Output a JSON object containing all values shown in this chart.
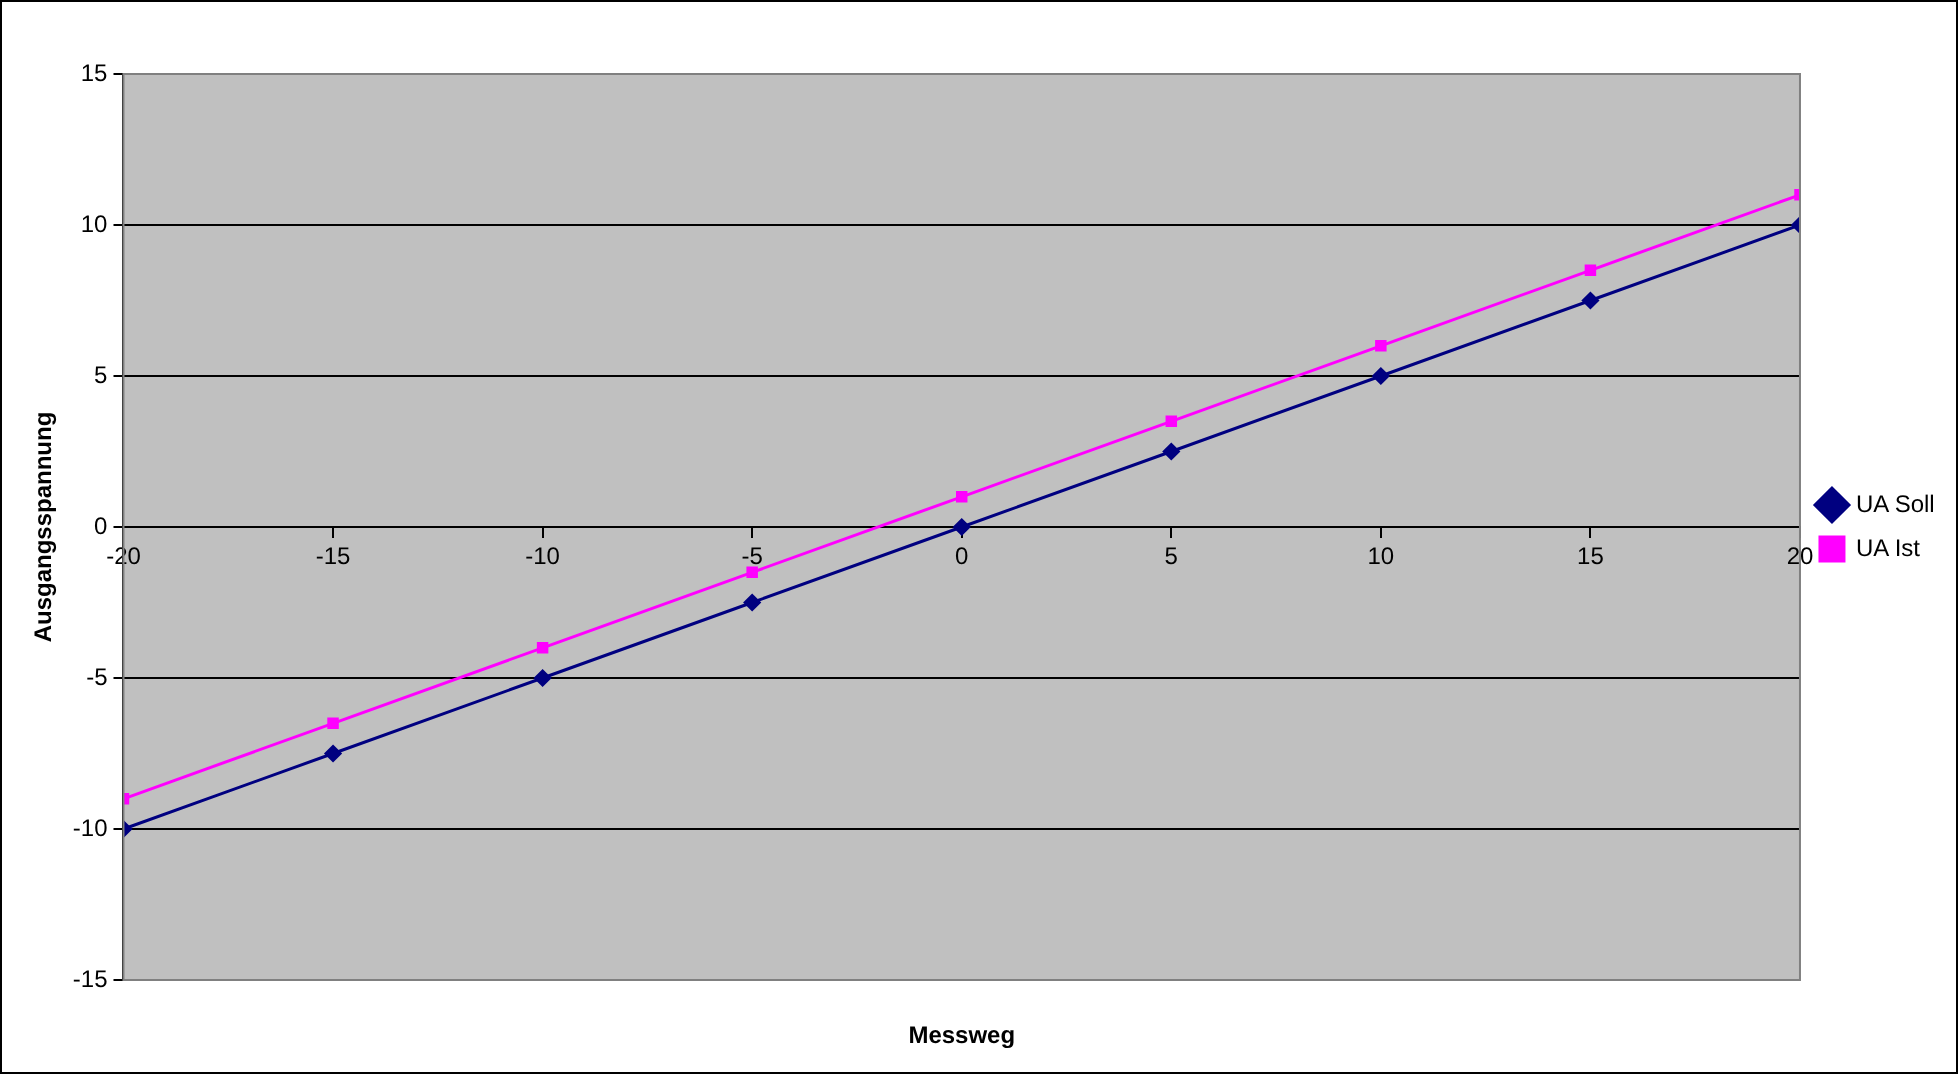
{
  "chart_data": {
    "type": "line",
    "xlabel": "Messweg",
    "ylabel": "Ausgangsspannung",
    "x": [
      -20,
      -15,
      -10,
      -5,
      0,
      5,
      10,
      15,
      20
    ],
    "series": [
      {
        "name": "UA Soll",
        "color": "#000080",
        "marker": "diamond",
        "values": [
          -10,
          -7.5,
          -5,
          -2.5,
          0,
          2.5,
          5,
          7.5,
          10
        ]
      },
      {
        "name": "UA Ist",
        "color": "#ff00ff",
        "marker": "square",
        "values": [
          -9,
          -6.5,
          -4,
          -1.5,
          1,
          3.5,
          6,
          8.5,
          11
        ]
      }
    ],
    "xlim": [
      -20,
      20
    ],
    "xticks": [
      -20,
      -15,
      -10,
      -5,
      0,
      5,
      10,
      15,
      20
    ],
    "ylim": [
      -15,
      15
    ],
    "yticks": [
      -15,
      -10,
      -5,
      0,
      5,
      10,
      15
    ],
    "grid": "y",
    "legend": "right"
  }
}
